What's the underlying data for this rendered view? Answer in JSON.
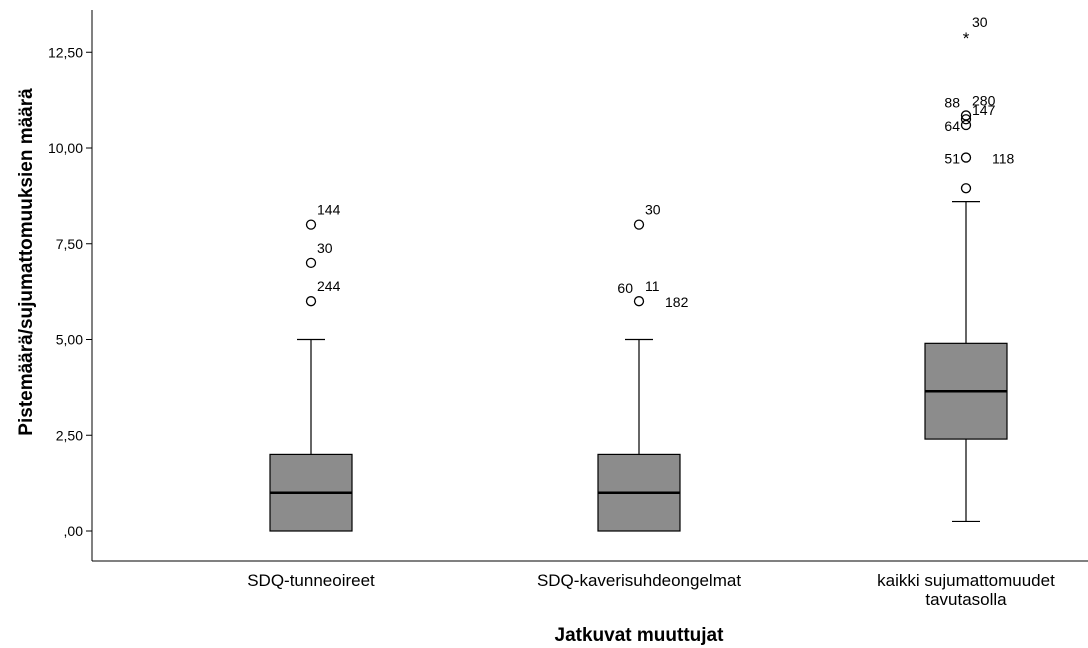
{
  "chart_data": {
    "type": "boxplot",
    "xlabel": "Jatkuvat muuttujat",
    "ylabel": "Pistemäärä/sujumattomuuksien määrä",
    "ylim": [
      -0.5,
      13.5
    ],
    "yticks": [
      {
        "value": 0,
        "label": ",00"
      },
      {
        "value": 2.5,
        "label": "2,50"
      },
      {
        "value": 5,
        "label": "5,00"
      },
      {
        "value": 7.5,
        "label": "7,50"
      },
      {
        "value": 10,
        "label": "10,00"
      },
      {
        "value": 12.5,
        "label": "12,50"
      }
    ],
    "box_color": "#8c8c8c",
    "categories": [
      {
        "label_lines": [
          "SDQ-tunneoireet"
        ],
        "min": 0,
        "q1": 0,
        "median": 1,
        "q3": 2,
        "max": 5,
        "outliers": [
          {
            "value": 8,
            "symbol": "circle",
            "labels": [
              {
                "text": "144",
                "side": "right"
              }
            ]
          },
          {
            "value": 7,
            "symbol": "circle",
            "labels": [
              {
                "text": "30",
                "side": "right"
              }
            ]
          },
          {
            "value": 6,
            "symbol": "circle",
            "labels": [
              {
                "text": "244",
                "side": "right"
              }
            ]
          }
        ]
      },
      {
        "label_lines": [
          "SDQ-kaverisuhdeongelmat"
        ],
        "min": 0,
        "q1": 0,
        "median": 1,
        "q3": 2,
        "max": 5,
        "outliers": [
          {
            "value": 8,
            "symbol": "circle",
            "labels": [
              {
                "text": "30",
                "side": "right"
              }
            ]
          },
          {
            "value": 6,
            "symbol": "circle",
            "labels": [
              {
                "text": "60",
                "side": "left-up"
              },
              {
                "text": "11",
                "side": "right-up"
              },
              {
                "text": "182",
                "side": "right-down"
              }
            ]
          }
        ]
      },
      {
        "label_lines": [
          "kaikki sujumattomuudet",
          "tavutasolla"
        ],
        "min": 0.25,
        "q1": 2.4,
        "median": 3.65,
        "q3": 4.9,
        "max": 8.6,
        "outliers": [
          {
            "value": 12.9,
            "symbol": "star",
            "labels": [
              {
                "text": "30",
                "side": "right-up"
              }
            ]
          },
          {
            "value": 10.85,
            "symbol": "circle",
            "labels": [
              {
                "text": "88",
                "side": "left-up"
              },
              {
                "text": "280",
                "side": "right-up"
              }
            ]
          },
          {
            "value": 10.75,
            "symbol": "circle",
            "labels": []
          },
          {
            "value": 10.6,
            "symbol": "circle",
            "labels": [
              {
                "text": "64",
                "side": "left-down"
              },
              {
                "text": "147",
                "side": "right"
              }
            ]
          },
          {
            "value": 9.75,
            "symbol": "circle",
            "labels": [
              {
                "text": "51",
                "side": "left-down"
              },
              {
                "text": "118",
                "side": "right-down"
              }
            ]
          },
          {
            "value": 8.95,
            "symbol": "circle",
            "labels": []
          }
        ]
      }
    ]
  }
}
